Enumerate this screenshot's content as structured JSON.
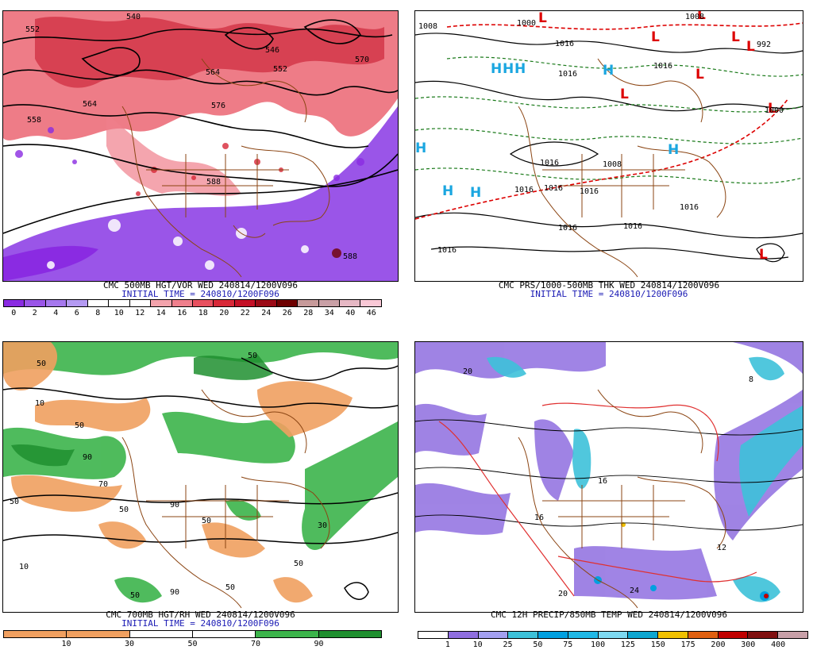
{
  "panels": {
    "vort": {
      "title": "CMC 500MB HGT/VOR WED 240814/1200V096",
      "subtitle": "INITIAL TIME = 240810/1200F096",
      "legend_colors": [
        "#8a2be2",
        "#9a55e8",
        "#a678ee",
        "#b49af2",
        "#ffffff",
        "#ffffff",
        "#ffffff",
        "#f3a3ac",
        "#ef7f8c",
        "#e8505f",
        "#d82838",
        "#c41026",
        "#9b0a16",
        "#6e0000",
        "#c79a9a",
        "#c9a0a6",
        "#e6b8c4",
        "#f9c8d6"
      ],
      "legend_labels": [
        "0",
        "2",
        "4",
        "6",
        "8",
        "10",
        "12",
        "14",
        "16",
        "18",
        "20",
        "22",
        "24",
        "26",
        "28",
        "34",
        "40",
        "46"
      ],
      "contour_labels": [
        "552",
        "540",
        "552",
        "546",
        "564",
        "564",
        "576",
        "558",
        "588",
        "588",
        "570"
      ]
    },
    "prs": {
      "title": "CMC PRS/1000-500MB THK WED 240814/1200V096",
      "subtitle": "INITIAL TIME = 240810/1200F096",
      "highs": [
        "H",
        "H",
        "H",
        "H",
        "H",
        "H",
        "H",
        "H"
      ],
      "lows": [
        "L",
        "L",
        "L",
        "L",
        "L",
        "L",
        "L",
        "L",
        "L"
      ],
      "isobar_labels": [
        "1008",
        "1000",
        "1016",
        "1016",
        "1016",
        "992",
        "1008",
        "1016",
        "1016",
        "1016",
        "1008",
        "1016",
        "1016",
        "1000",
        "1016",
        "1016",
        "1016"
      ]
    },
    "rh": {
      "title": "CMC 700MB HGT/RH WED 240814/1200V096",
      "subtitle": "INITIAL TIME = 240810/1200F096",
      "legend_colors": [
        "#f0a060",
        "#f0a060",
        "#ffffff",
        "#ffffff",
        "#3cb44b",
        "#1f8f2f"
      ],
      "legend_labels": [
        "10",
        "30",
        "50",
        "70",
        "90"
      ],
      "contour_labels": [
        "50",
        "50",
        "50",
        "10",
        "90",
        "50",
        "70",
        "50",
        "90",
        "50",
        "50",
        "50",
        "10",
        "90",
        "30",
        "50"
      ]
    },
    "precip": {
      "title": "CMC 12H PRECIP/850MB TEMP WED 240814/1200V096",
      "legend_colors": [
        "#ffffff",
        "#8f6ee0",
        "#a3a0f0",
        "#3dc1d9",
        "#00a0e0",
        "#1fb8e6",
        "#7dd8f0",
        "#0da6d0",
        "#f0c000",
        "#e06010",
        "#c00000",
        "#801010",
        "#c8a0a8"
      ],
      "legend_labels": [
        "1",
        "10",
        "25",
        "50",
        "75",
        "100",
        "125",
        "150",
        "175",
        "200",
        "300",
        "400"
      ],
      "contour_labels": [
        "20",
        "20",
        "16",
        "12",
        "8",
        "16",
        "24"
      ]
    }
  }
}
